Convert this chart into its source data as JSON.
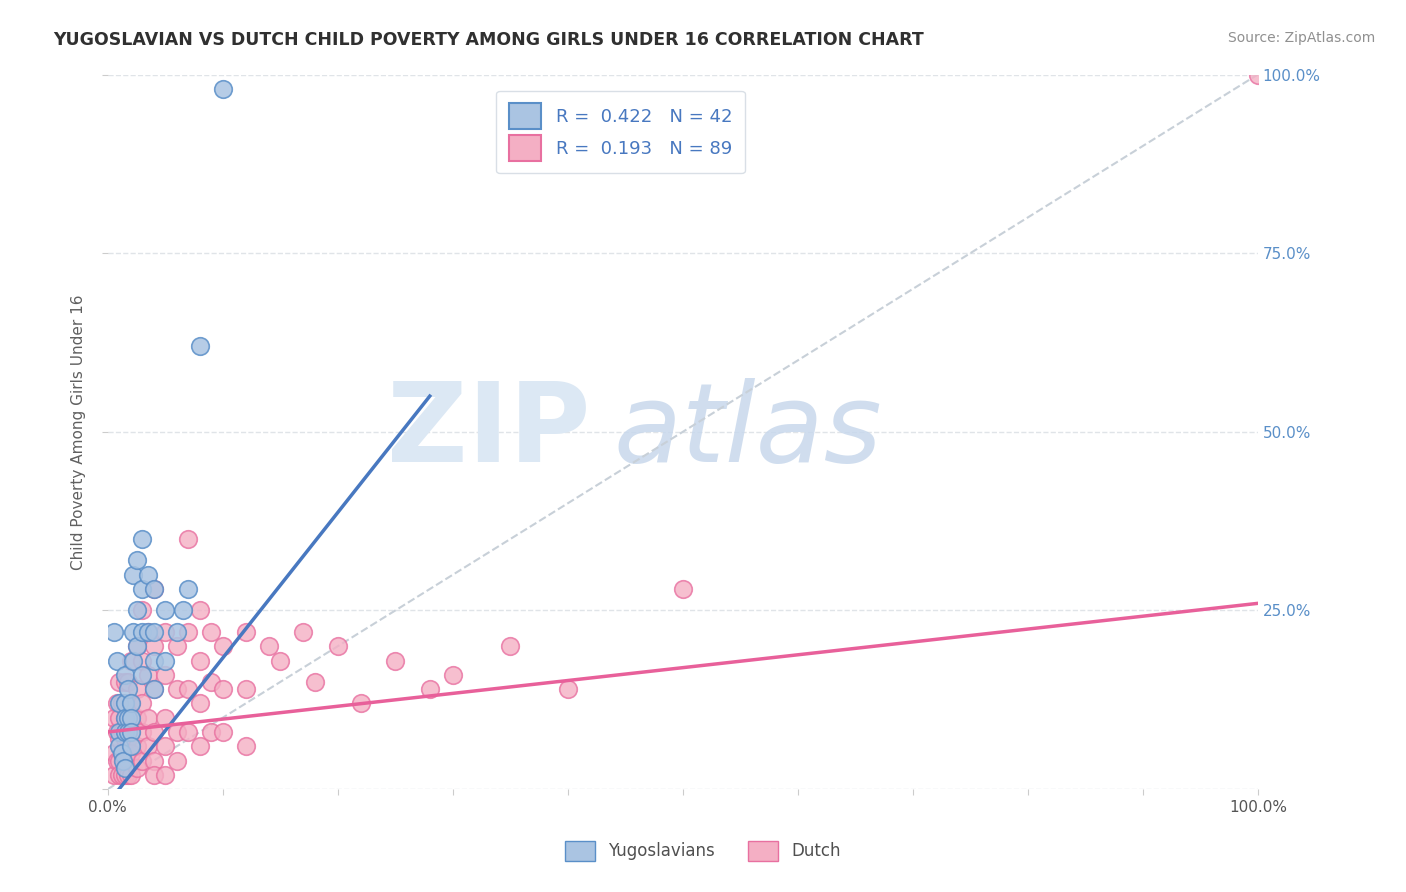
{
  "title": "YUGOSLAVIAN VS DUTCH CHILD POVERTY AMONG GIRLS UNDER 16 CORRELATION CHART",
  "source": "Source: ZipAtlas.com",
  "ylabel": "Child Poverty Among Girls Under 16",
  "xlim": [
    0.0,
    1.0
  ],
  "ylim": [
    0.0,
    1.0
  ],
  "yug_R": 0.422,
  "yug_N": 42,
  "dutch_R": 0.193,
  "dutch_N": 89,
  "yug_color": "#aac4e2",
  "dutch_color": "#f4afc4",
  "yug_edge_color": "#5a8fc8",
  "dutch_edge_color": "#e870a0",
  "yug_line_color": "#4878c0",
  "dutch_line_color": "#e8609a",
  "diag_line_color": "#c8d0d8",
  "grid_color": "#e0e4e8",
  "right_tick_color": "#5a8fc8",
  "title_color": "#303030",
  "source_color": "#909090",
  "ylabel_color": "#606060",
  "legend_text_color": "#4878c0",
  "watermark_zip_color": "#dce8f4",
  "watermark_atlas_color": "#c8d8ec",
  "yug_scatter": [
    [
      0.005,
      0.22
    ],
    [
      0.008,
      0.18
    ],
    [
      0.01,
      0.12
    ],
    [
      0.01,
      0.08
    ],
    [
      0.01,
      0.06
    ],
    [
      0.012,
      0.05
    ],
    [
      0.013,
      0.04
    ],
    [
      0.015,
      0.03
    ],
    [
      0.015,
      0.16
    ],
    [
      0.015,
      0.12
    ],
    [
      0.015,
      0.1
    ],
    [
      0.015,
      0.08
    ],
    [
      0.018,
      0.14
    ],
    [
      0.018,
      0.1
    ],
    [
      0.018,
      0.08
    ],
    [
      0.02,
      0.12
    ],
    [
      0.02,
      0.1
    ],
    [
      0.02,
      0.08
    ],
    [
      0.02,
      0.06
    ],
    [
      0.022,
      0.3
    ],
    [
      0.022,
      0.22
    ],
    [
      0.022,
      0.18
    ],
    [
      0.025,
      0.32
    ],
    [
      0.025,
      0.25
    ],
    [
      0.025,
      0.2
    ],
    [
      0.03,
      0.35
    ],
    [
      0.03,
      0.28
    ],
    [
      0.03,
      0.22
    ],
    [
      0.03,
      0.16
    ],
    [
      0.035,
      0.3
    ],
    [
      0.035,
      0.22
    ],
    [
      0.04,
      0.28
    ],
    [
      0.04,
      0.22
    ],
    [
      0.04,
      0.18
    ],
    [
      0.04,
      0.14
    ],
    [
      0.05,
      0.25
    ],
    [
      0.05,
      0.18
    ],
    [
      0.06,
      0.22
    ],
    [
      0.065,
      0.25
    ],
    [
      0.07,
      0.28
    ],
    [
      0.08,
      0.62
    ],
    [
      0.1,
      0.98
    ]
  ],
  "dutch_scatter": [
    [
      0.005,
      0.1
    ],
    [
      0.005,
      0.05
    ],
    [
      0.005,
      0.02
    ],
    [
      0.008,
      0.12
    ],
    [
      0.008,
      0.08
    ],
    [
      0.008,
      0.04
    ],
    [
      0.01,
      0.15
    ],
    [
      0.01,
      0.1
    ],
    [
      0.01,
      0.07
    ],
    [
      0.01,
      0.04
    ],
    [
      0.01,
      0.02
    ],
    [
      0.012,
      0.12
    ],
    [
      0.012,
      0.08
    ],
    [
      0.012,
      0.05
    ],
    [
      0.012,
      0.02
    ],
    [
      0.015,
      0.15
    ],
    [
      0.015,
      0.1
    ],
    [
      0.015,
      0.07
    ],
    [
      0.015,
      0.04
    ],
    [
      0.015,
      0.02
    ],
    [
      0.018,
      0.15
    ],
    [
      0.018,
      0.1
    ],
    [
      0.018,
      0.07
    ],
    [
      0.018,
      0.04
    ],
    [
      0.018,
      0.02
    ],
    [
      0.02,
      0.18
    ],
    [
      0.02,
      0.12
    ],
    [
      0.02,
      0.08
    ],
    [
      0.02,
      0.05
    ],
    [
      0.02,
      0.02
    ],
    [
      0.025,
      0.2
    ],
    [
      0.025,
      0.14
    ],
    [
      0.025,
      0.1
    ],
    [
      0.025,
      0.06
    ],
    [
      0.025,
      0.03
    ],
    [
      0.03,
      0.25
    ],
    [
      0.03,
      0.18
    ],
    [
      0.03,
      0.12
    ],
    [
      0.03,
      0.08
    ],
    [
      0.03,
      0.04
    ],
    [
      0.035,
      0.22
    ],
    [
      0.035,
      0.16
    ],
    [
      0.035,
      0.1
    ],
    [
      0.035,
      0.06
    ],
    [
      0.04,
      0.28
    ],
    [
      0.04,
      0.2
    ],
    [
      0.04,
      0.14
    ],
    [
      0.04,
      0.08
    ],
    [
      0.04,
      0.04
    ],
    [
      0.04,
      0.02
    ],
    [
      0.05,
      0.22
    ],
    [
      0.05,
      0.16
    ],
    [
      0.05,
      0.1
    ],
    [
      0.05,
      0.06
    ],
    [
      0.05,
      0.02
    ],
    [
      0.06,
      0.2
    ],
    [
      0.06,
      0.14
    ],
    [
      0.06,
      0.08
    ],
    [
      0.06,
      0.04
    ],
    [
      0.07,
      0.35
    ],
    [
      0.07,
      0.22
    ],
    [
      0.07,
      0.14
    ],
    [
      0.07,
      0.08
    ],
    [
      0.08,
      0.25
    ],
    [
      0.08,
      0.18
    ],
    [
      0.08,
      0.12
    ],
    [
      0.08,
      0.06
    ],
    [
      0.09,
      0.22
    ],
    [
      0.09,
      0.15
    ],
    [
      0.09,
      0.08
    ],
    [
      0.1,
      0.2
    ],
    [
      0.1,
      0.14
    ],
    [
      0.1,
      0.08
    ],
    [
      0.12,
      0.22
    ],
    [
      0.12,
      0.14
    ],
    [
      0.12,
      0.06
    ],
    [
      0.14,
      0.2
    ],
    [
      0.15,
      0.18
    ],
    [
      0.17,
      0.22
    ],
    [
      0.18,
      0.15
    ],
    [
      0.2,
      0.2
    ],
    [
      0.22,
      0.12
    ],
    [
      0.25,
      0.18
    ],
    [
      0.28,
      0.14
    ],
    [
      0.3,
      0.16
    ],
    [
      0.35,
      0.2
    ],
    [
      0.4,
      0.14
    ],
    [
      0.5,
      0.28
    ],
    [
      1.0,
      1.0
    ]
  ],
  "yug_reg_line": [
    [
      0.0,
      -0.02
    ],
    [
      0.28,
      0.55
    ]
  ],
  "dutch_reg_line": [
    [
      0.0,
      0.08
    ],
    [
      1.0,
      0.26
    ]
  ]
}
